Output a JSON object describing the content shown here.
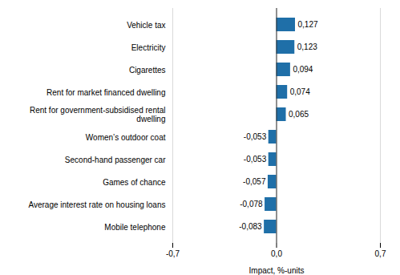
{
  "chart_data": {
    "type": "bar",
    "orientation": "horizontal",
    "categories": [
      "Mobile telephone",
      "Average interest rate on housing loans",
      "Games of chance",
      "Second-hand passenger car",
      "Women’s outdoor coat",
      "Rent for government-subsidised rental\ndwelling",
      "Rent for market financed dwelling",
      "Cigarettes",
      "Electricity",
      "Vehicle tax"
    ],
    "values": [
      -0.083,
      -0.078,
      -0.057,
      -0.053,
      -0.053,
      0.065,
      0.074,
      0.094,
      0.123,
      0.127
    ],
    "value_labels": [
      "-0,083",
      "-0,078",
      "-0,057",
      "-0,053",
      "-0,053",
      "0,065",
      "0,074",
      "0,094",
      "0,123",
      "0,127"
    ],
    "data_labels": true,
    "color": "#1F6FA8",
    "xlabel": "Impact, %-units",
    "xlim": [
      -0.7,
      0.7
    ],
    "xticks": [
      {
        "value": -0.7,
        "label": "-0,7"
      },
      {
        "value": 0,
        "label": "0,0"
      },
      {
        "value": 0.7,
        "label": "0,7"
      }
    ],
    "grid": true
  }
}
